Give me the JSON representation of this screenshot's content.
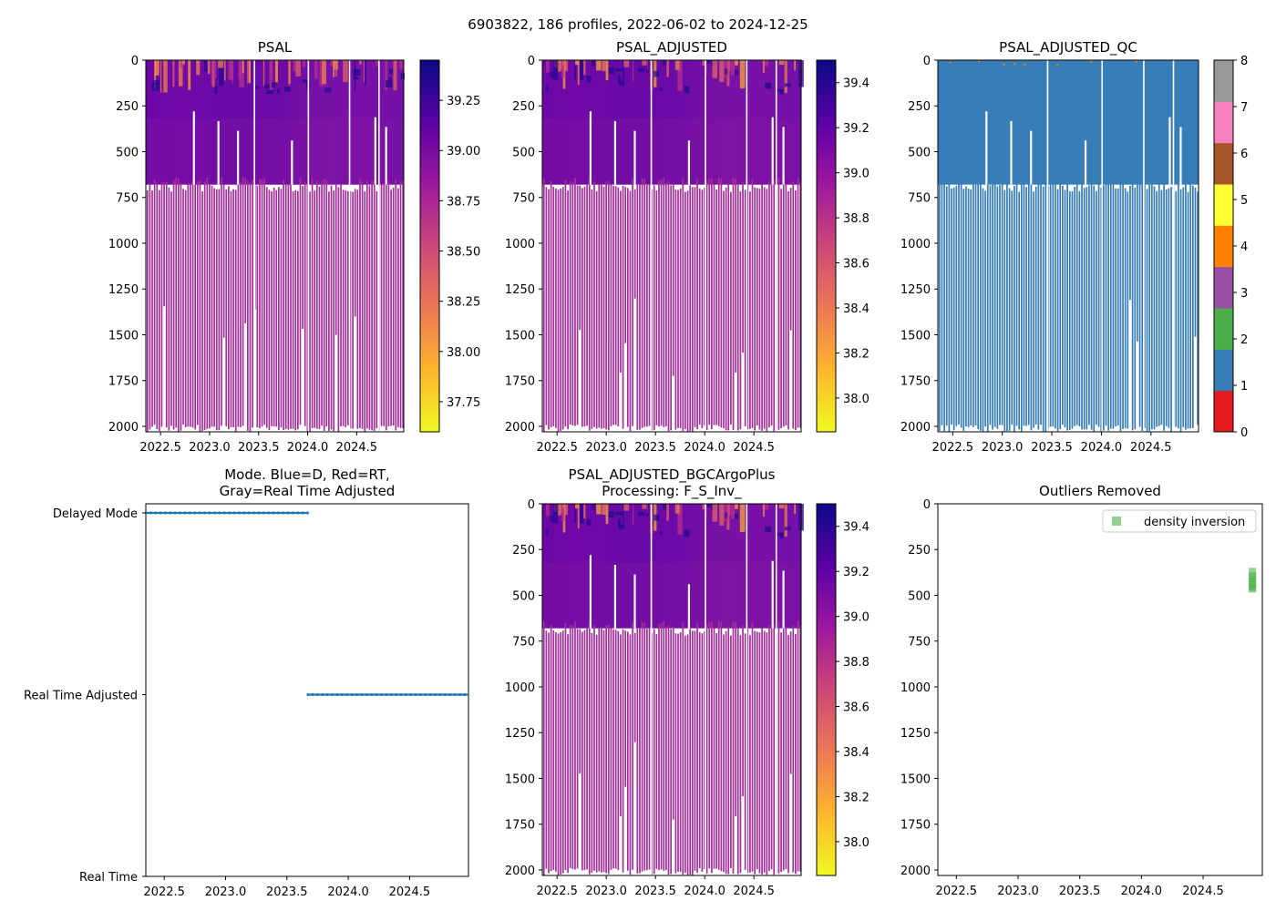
{
  "figure": {
    "title": "6903822, 186 profiles, 2022-06-02 to 2024-12-25"
  },
  "colors": {
    "plasma": [
      "#f0f921",
      "#fdb42f",
      "#ed7953",
      "#cc4778",
      "#9c179e",
      "#5c01a6",
      "#0d0887"
    ],
    "qc": [
      "#e41a1c",
      "#377eb8",
      "#4daf4a",
      "#984ea3",
      "#ff7f00",
      "#ffff33",
      "#a65628",
      "#f781bf",
      "#999999"
    ],
    "mode_line": "#1f77b4",
    "outlier": "#4daf4a"
  },
  "chart_data": [
    {
      "id": "psal",
      "type": "heatmap",
      "title": "PSAL",
      "xlim": [
        2022.35,
        2024.98
      ],
      "ylim": [
        2030,
        0
      ],
      "xticks": [
        2022.5,
        2023.0,
        2023.5,
        2024.0,
        2024.5
      ],
      "xtick_labels": [
        "2022.5",
        "2023.0",
        "2023.5",
        "2024.0",
        "2024.5"
      ],
      "yticks": [
        0,
        250,
        500,
        750,
        1000,
        1250,
        1500,
        1750,
        2000
      ],
      "ytick_labels": [
        "0",
        "250",
        "500",
        "750",
        "1000",
        "1250",
        "1500",
        "1750",
        "2000"
      ],
      "profile_count": 186,
      "colorbar": {
        "range": [
          37.6,
          39.45
        ],
        "ticks": [
          37.75,
          38.0,
          38.25,
          38.5,
          38.75,
          39.0,
          39.25
        ],
        "tick_labels": [
          "37.75",
          "38.00",
          "38.25",
          "38.50",
          "38.75",
          "39.00",
          "39.25"
        ]
      }
    },
    {
      "id": "psal_adjusted",
      "type": "heatmap",
      "title": "PSAL_ADJUSTED",
      "xlim": [
        2022.35,
        2024.98
      ],
      "ylim": [
        2030,
        0
      ],
      "xticks": [
        2022.5,
        2023.0,
        2023.5,
        2024.0,
        2024.5
      ],
      "xtick_labels": [
        "2022.5",
        "2023.0",
        "2023.5",
        "2024.0",
        "2024.5"
      ],
      "yticks": [
        0,
        250,
        500,
        750,
        1000,
        1250,
        1500,
        1750,
        2000
      ],
      "ytick_labels": [
        "0",
        "250",
        "500",
        "750",
        "1000",
        "1250",
        "1500",
        "1750",
        "2000"
      ],
      "colorbar": {
        "range": [
          37.85,
          39.5
        ],
        "ticks": [
          38.0,
          38.2,
          38.4,
          38.6,
          38.8,
          39.0,
          39.2,
          39.4
        ],
        "tick_labels": [
          "38.0",
          "38.2",
          "38.4",
          "38.6",
          "38.8",
          "39.0",
          "39.2",
          "39.4"
        ]
      }
    },
    {
      "id": "psal_adjusted_qc",
      "type": "heatmap",
      "title": "PSAL_ADJUSTED_QC",
      "xlim": [
        2022.35,
        2024.98
      ],
      "ylim": [
        2030,
        0
      ],
      "xticks": [
        2022.5,
        2023.0,
        2023.5,
        2024.0,
        2024.5
      ],
      "xtick_labels": [
        "2022.5",
        "2023.0",
        "2023.5",
        "2024.0",
        "2024.5"
      ],
      "yticks": [
        0,
        250,
        500,
        750,
        1000,
        1250,
        1500,
        1750,
        2000
      ],
      "ytick_labels": [
        "0",
        "250",
        "500",
        "750",
        "1000",
        "1250",
        "1500",
        "1750",
        "2000"
      ],
      "dominant_qc": 1,
      "colorbar": {
        "range": [
          0,
          8
        ],
        "ticks": [
          0,
          1,
          2,
          3,
          4,
          5,
          6,
          7,
          8
        ],
        "tick_labels": [
          "0",
          "1",
          "2",
          "3",
          "4",
          "5",
          "6",
          "7",
          "8"
        ]
      }
    },
    {
      "id": "mode",
      "type": "line",
      "title_lines": [
        "Mode. Blue=D, Red=RT,",
        "Gray=Real Time Adjusted"
      ],
      "xlim": [
        2022.35,
        2024.98
      ],
      "ylim": [
        0,
        2
      ],
      "xticks": [
        2022.5,
        2023.0,
        2023.5,
        2024.0,
        2024.5
      ],
      "xtick_labels": [
        "2022.5",
        "2023.0",
        "2023.5",
        "2024.0",
        "2024.5"
      ],
      "ytick_values": [
        2,
        1,
        0
      ],
      "ytick_labels": [
        "Delayed Mode",
        "Real Time Adjusted",
        "Real Time"
      ],
      "series": [
        {
          "name": "D",
          "level": 2,
          "x_start": 2022.35,
          "x_end": 2023.67
        },
        {
          "name": "RT Adjusted",
          "level": 1,
          "x_start": 2023.67,
          "x_end": 2024.98
        }
      ]
    },
    {
      "id": "psal_bgc",
      "type": "heatmap",
      "title_lines": [
        "PSAL_ADJUSTED_BGCArgoPlus",
        "Processing: F_S_Inv_"
      ],
      "xlim": [
        2022.35,
        2024.98
      ],
      "ylim": [
        2030,
        0
      ],
      "xticks": [
        2022.5,
        2023.0,
        2023.5,
        2024.0,
        2024.5
      ],
      "xtick_labels": [
        "2022.5",
        "2023.0",
        "2023.5",
        "2024.0",
        "2024.5"
      ],
      "yticks": [
        0,
        250,
        500,
        750,
        1000,
        1250,
        1500,
        1750,
        2000
      ],
      "ytick_labels": [
        "0",
        "250",
        "500",
        "750",
        "1000",
        "1250",
        "1500",
        "1750",
        "2000"
      ],
      "colorbar": {
        "range": [
          37.85,
          39.5
        ],
        "ticks": [
          38.0,
          38.2,
          38.4,
          38.6,
          38.8,
          39.0,
          39.2,
          39.4
        ],
        "tick_labels": [
          "38.0",
          "38.2",
          "38.4",
          "38.6",
          "38.8",
          "39.0",
          "39.2",
          "39.4"
        ]
      }
    },
    {
      "id": "outliers",
      "type": "scatter",
      "title": "Outliers Removed",
      "xlim": [
        2022.35,
        2024.98
      ],
      "ylim": [
        2030,
        0
      ],
      "xticks": [
        2022.5,
        2023.0,
        2023.5,
        2024.0,
        2024.5
      ],
      "xtick_labels": [
        "2022.5",
        "2023.0",
        "2023.5",
        "2024.0",
        "2024.5"
      ],
      "yticks": [
        0,
        250,
        500,
        750,
        1000,
        1250,
        1500,
        1750,
        2000
      ],
      "ytick_labels": [
        "0",
        "250",
        "500",
        "750",
        "1000",
        "1250",
        "1500",
        "1750",
        "2000"
      ],
      "legend": {
        "label": "density inversion",
        "position": "upper right"
      },
      "points": [
        {
          "x": 2024.9,
          "y": 370
        },
        {
          "x": 2024.9,
          "y": 395
        },
        {
          "x": 2024.9,
          "y": 410
        },
        {
          "x": 2024.9,
          "y": 425
        },
        {
          "x": 2024.9,
          "y": 440
        },
        {
          "x": 2024.9,
          "y": 455
        },
        {
          "x": 2024.9,
          "y": 465
        }
      ]
    }
  ]
}
